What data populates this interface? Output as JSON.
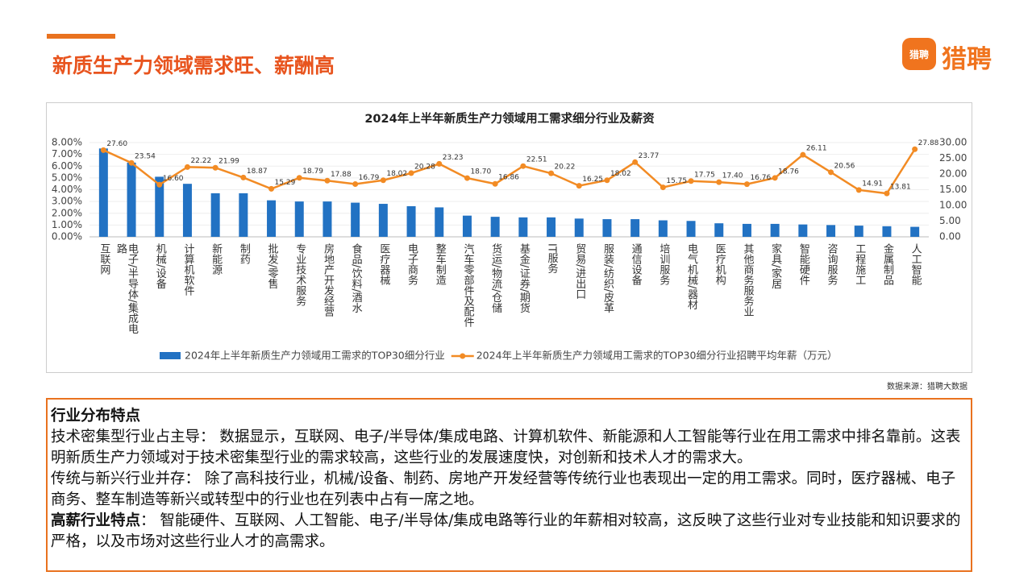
{
  "header": {
    "title": "新质生产力领域需求旺、薪酬高",
    "logo_mark": "猎聘",
    "logo_text": "猎聘"
  },
  "chart_data": {
    "type": "bar_line",
    "title": "2024年上半年新质生产力领域用工需求细分行业及薪资",
    "categories": [
      "互联网",
      "电子/半导体/集成电路",
      "机械/设备",
      "计算机软件",
      "新能源",
      "制药",
      "批发/零售",
      "专业技术服务",
      "房地产开发经营",
      "食品/饮料/酒水",
      "医疗器械",
      "电子商务",
      "整车制造",
      "汽车零部件及配件",
      "货运/物流/仓储",
      "基金/证券/期货",
      "IT服务",
      "贸易/进出口",
      "服装/纺织/皮革",
      "通信设备",
      "培训服务",
      "电气机械/器材",
      "医疗机构",
      "其他商务服务业",
      "家具/家居",
      "智能硬件",
      "咨询服务",
      "工程施工",
      "金属制品",
      "人工智能"
    ],
    "series": [
      {
        "name": "2024年上半年新质生产力领域用工需求的TOP30细分行业",
        "type": "bar",
        "color": "#2272c3",
        "values": [
          7.5,
          6.3,
          5.1,
          4.5,
          3.7,
          3.7,
          3.1,
          3.0,
          3.0,
          2.9,
          2.8,
          2.6,
          2.5,
          1.8,
          1.7,
          1.65,
          1.65,
          1.55,
          1.5,
          1.5,
          1.4,
          1.35,
          1.15,
          1.1,
          1.1,
          1.05,
          1.0,
          0.95,
          0.9,
          0.85
        ]
      },
      {
        "name": "2024年上半年新质生产力领域用工需求的TOP30细分行业招聘平均年薪（万元）",
        "type": "line",
        "axis": "y2",
        "color": "#f28b24",
        "values": [
          27.6,
          23.54,
          16.6,
          22.22,
          21.99,
          18.87,
          15.29,
          18.79,
          17.88,
          16.79,
          18.02,
          20.28,
          23.23,
          18.7,
          16.86,
          22.51,
          20.22,
          16.25,
          18.02,
          23.77,
          15.75,
          17.75,
          17.4,
          16.76,
          18.76,
          26.11,
          20.56,
          14.91,
          13.81,
          27.88
        ],
        "value_labels": [
          "27.60",
          "23.54",
          "16.60",
          "22.22",
          "21.99",
          "18.87",
          "15.29",
          "18.79",
          "17.88",
          "16.79",
          "18.02",
          "20.28",
          "23.23",
          "18.70",
          "16.86",
          "22.51",
          "20.22",
          "16.25",
          "18.02",
          "23.77",
          "15.75",
          "17.75",
          "17.40",
          "16.76",
          "18.76",
          "26.11",
          "20.56",
          "14.91",
          "13.81",
          "27.88"
        ]
      }
    ],
    "ylim": [
      0,
      8
    ],
    "yticks": [
      {
        "value": 0,
        "label": "0.00%"
      },
      {
        "value": 1,
        "label": "1.00%"
      },
      {
        "value": 2,
        "label": "2.00%"
      },
      {
        "value": 3,
        "label": "3.00%"
      },
      {
        "value": 4,
        "label": "4.00%"
      },
      {
        "value": 5,
        "label": "5.00%"
      },
      {
        "value": 6,
        "label": "6.00%"
      },
      {
        "value": 7,
        "label": "7.00%"
      },
      {
        "value": 8,
        "label": "8.00%"
      }
    ],
    "y2lim": [
      0,
      30
    ],
    "y2ticks": [
      {
        "value": 0,
        "label": "0.00"
      },
      {
        "value": 5,
        "label": "5.00"
      },
      {
        "value": 10,
        "label": "10.00"
      },
      {
        "value": 15,
        "label": "15.00"
      },
      {
        "value": 20,
        "label": "20.00"
      },
      {
        "value": 25,
        "label": "25.00"
      },
      {
        "value": 30,
        "label": "30.00"
      }
    ],
    "grid": true,
    "legend": "bottom",
    "source": "数据来源：猎聘大数据"
  },
  "notes": {
    "heading": "行业分布特点",
    "paragraphs": [
      {
        "lead": "技术密集型行业占主导：",
        "text": " 数据显示，互联网、电子/半导体/集成电路、计算机软件、新能源和人工智能等行业在用工需求中排名靠前。这表明新质生产力领域对于技术密集型行业的需求较高，这些行业的发展速度快，对创新和技术人才的需求大。",
        "bold": false
      },
      {
        "lead": "传统与新兴行业并存：",
        "text": " 除了高科技行业，机械/设备、制药、房地产开发经营等传统行业也表现出一定的用工需求。同时，医疗器械、电子商务、整车制造等新兴或转型中的行业也在列表中占有一席之地。",
        "bold": false
      },
      {
        "lead": "高薪行业特点",
        "text": "： 智能硬件、互联网、人工智能、电子/半导体/集成电路等行业的年薪相对较高，这反映了这些行业对专业技能和知识要求的严格，以及市场对这些行业人才的高需求。",
        "bold": true
      }
    ]
  }
}
